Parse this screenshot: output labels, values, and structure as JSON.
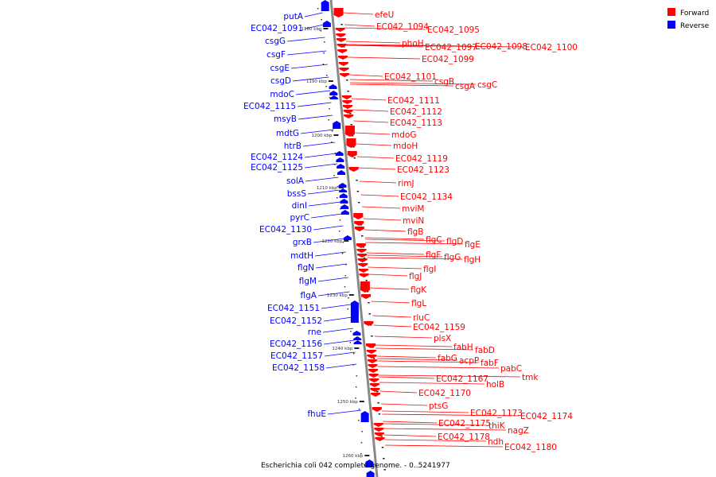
{
  "caption": "Escherichia coli 042 complete genome. - 0..5241977",
  "legend": [
    {
      "label": "Forward",
      "color": "#ff0000"
    },
    {
      "label": "Reverse",
      "color": "#0000ff"
    }
  ],
  "colors": {
    "forward": "#ff0000",
    "reverse": "#0000ff",
    "backbone": "#888888"
  },
  "ticks": [
    "1180 kbp",
    "1190 kbp",
    "1200 kbp",
    "1210 kbp",
    "1220 kbp",
    "1230 kbp",
    "1240 kbp",
    "1250 kbp",
    "1260 kbp"
  ],
  "reverse_genes": [
    "putA",
    "EC042_1091",
    "csgG",
    "csgF",
    "csgE",
    "csgD",
    "mdoC",
    "EC042_1115",
    "msyB",
    "mdtG",
    "htrB",
    "EC042_1124",
    "EC042_1125",
    "solA",
    "bssS",
    "dinI",
    "pyrC",
    "EC042_1130",
    "grxB",
    "mdtH",
    "flgN",
    "flgM",
    "flgA",
    "EC042_1151",
    "EC042_1152",
    "rne",
    "EC042_1156",
    "EC042_1157",
    "EC042_1158",
    "fhuE"
  ],
  "forward_genes": [
    "efeU",
    "EC042_1094",
    "EC042_1095",
    "phoH",
    "EC042_1097",
    "EC042_1098",
    "EC042_1100",
    "EC042_1099",
    "EC042_1101",
    "csgB",
    "csgA",
    "csgC",
    "EC042_1111",
    "EC042_1112",
    "EC042_1113",
    "mdoG",
    "mdoH",
    "EC042_1119",
    "EC042_1123",
    "rimJ",
    "EC042_1134",
    "mviM",
    "mviN",
    "flgB",
    "flgC",
    "flgD",
    "flgE",
    "flgF",
    "flgG",
    "flgH",
    "flgI",
    "flgJ",
    "flgK",
    "flgL",
    "rluC",
    "EC042_1159",
    "plsX",
    "fabH",
    "fabD",
    "fabG",
    "acpP",
    "fabF",
    "pabC",
    "EC042_1167",
    "tmk",
    "holB",
    "EC042_1170",
    "ptsG",
    "EC042_1173",
    "EC042_1174",
    "EC042_1175",
    "thiK",
    "nagZ",
    "EC042_1178",
    "ndh",
    "EC042_1180"
  ]
}
